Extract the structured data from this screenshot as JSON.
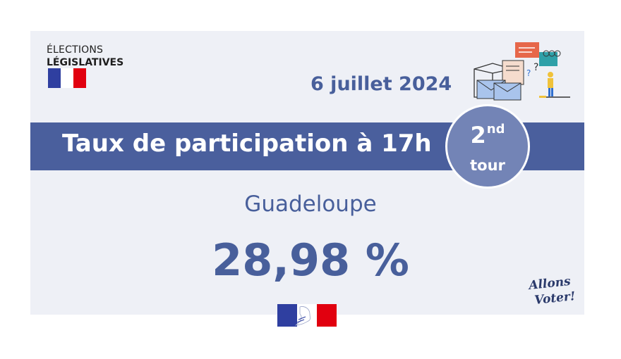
{
  "logo": {
    "line1": "ÉLECTIONS",
    "line2": "LÉGISLATIVES"
  },
  "date": "6 juillet 2024",
  "banner": {
    "title": "Taux de participation à 17h"
  },
  "round": {
    "number": "2",
    "suffix": "nd",
    "label": "tour"
  },
  "region": "Guadeloupe",
  "rate": "28,98 %",
  "slogan": {
    "line1": "Allons",
    "line2": "Voter!"
  },
  "colors": {
    "primary": "#485f9b",
    "banner": "#4a5f9d",
    "badge": "#7384b6",
    "background": "#eef0f6",
    "flag_blue": "#2f3fa0",
    "flag_red": "#e1000f"
  }
}
